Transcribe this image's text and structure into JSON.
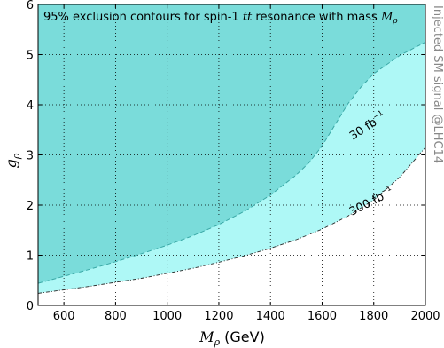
{
  "chart_data": {
    "type": "area",
    "title": "95% exclusion contours for spin-1 tt̄ resonance with mass Mρ",
    "title_parts": {
      "prefix": "95% exclusion contours for spin-1 ",
      "tt": "tt",
      "middle": " resonance with mass ",
      "m": "M",
      "m_sub": "ρ"
    },
    "xlabel": "Mρ (GeV)",
    "xlabel_parts": {
      "m": "M",
      "sub": "ρ",
      "unit": " (GeV)"
    },
    "ylabel": "gρ",
    "ylabel_parts": {
      "g": "g",
      "sub": "ρ"
    },
    "xlim": [
      500,
      2000
    ],
    "ylim": [
      0,
      6
    ],
    "xticks": [
      "600",
      "800",
      "1000",
      "1200",
      "1400",
      "1600",
      "1800",
      "2000"
    ],
    "yticks": [
      "0",
      "1",
      "2",
      "3",
      "4",
      "5",
      "6"
    ],
    "grid": true,
    "side_annotation": "Injected SM signal @LHC14",
    "colors": {
      "region_30": "#7adcda",
      "region_300": "#aef8f6",
      "line_30": "#3aa8a6",
      "line_300": "#2a2a2a"
    },
    "series": [
      {
        "name": "30 fb⁻¹",
        "label_text": "30 fb",
        "label_sup": "−1",
        "x": [
          500,
          600,
          700,
          800,
          900,
          1000,
          1100,
          1200,
          1300,
          1400,
          1500,
          1550,
          1600,
          1650,
          1700,
          1750,
          1800,
          1900,
          2000
        ],
        "y": [
          0.44,
          0.58,
          0.72,
          0.87,
          1.03,
          1.2,
          1.39,
          1.61,
          1.88,
          2.2,
          2.6,
          2.85,
          3.18,
          3.6,
          4.02,
          4.35,
          4.62,
          4.98,
          5.25
        ]
      },
      {
        "name": "300 fb⁻¹",
        "label_text": "300 fb",
        "label_sup": "−1",
        "x": [
          500,
          600,
          700,
          800,
          900,
          1000,
          1100,
          1200,
          1300,
          1400,
          1500,
          1600,
          1700,
          1800,
          1900,
          2000
        ],
        "y": [
          0.24,
          0.31,
          0.38,
          0.46,
          0.54,
          0.64,
          0.74,
          0.86,
          0.99,
          1.14,
          1.31,
          1.52,
          1.78,
          2.1,
          2.55,
          3.15
        ]
      }
    ]
  }
}
